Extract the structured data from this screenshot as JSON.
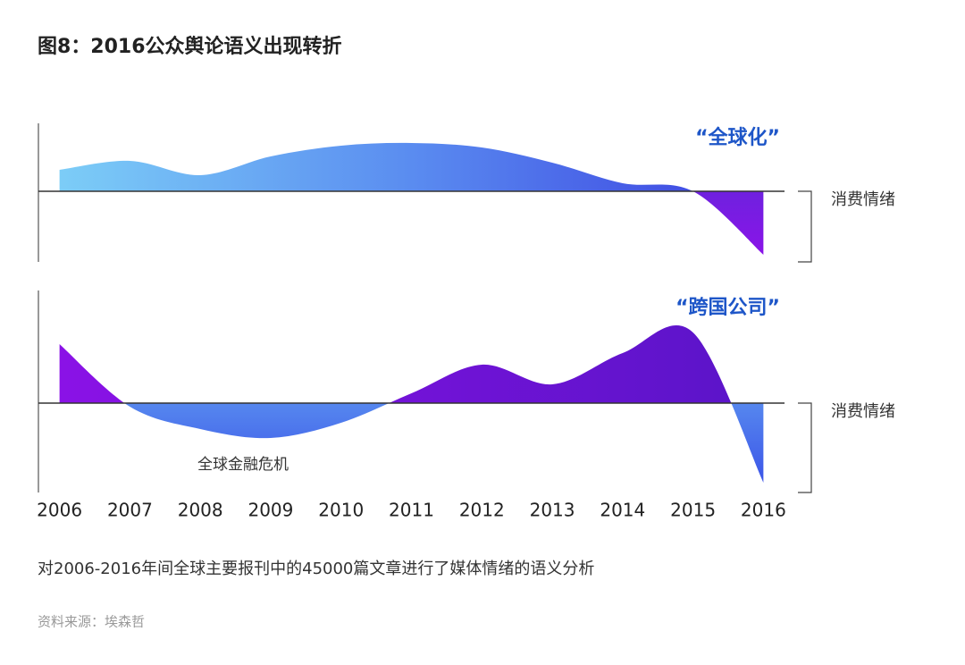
{
  "title": "图8：2016公众舆论语义出现转折",
  "chart_data": [
    {
      "type": "area",
      "label": "“全球化”",
      "axis_label": "消费情绪",
      "x": [
        2006,
        2007,
        2008,
        2009,
        2010,
        2011,
        2012,
        2013,
        2014,
        2015,
        2016
      ],
      "values": [
        24,
        34,
        18,
        39,
        51,
        54,
        49,
        32,
        9,
        0,
        -71
      ],
      "xlim": [
        2005.7,
        2016.3
      ],
      "ylim": [
        -79,
        76
      ]
    },
    {
      "type": "area",
      "label": "“跨国公司”",
      "axis_label": "消费情绪",
      "annotation": "全球金融危机",
      "x": [
        2006,
        2007,
        2008,
        2009,
        2010,
        2011,
        2012,
        2013,
        2014,
        2015,
        2016
      ],
      "values": [
        66,
        -4,
        -29,
        -39,
        -22,
        11,
        43,
        21,
        56,
        79,
        -89
      ],
      "xlim": [
        2005.7,
        2016.3
      ],
      "ylim": [
        -100,
        126
      ]
    }
  ],
  "caption": "对2006-2016年间全球主要报刊中的45000篇文章进行了媒体情绪的语义分析",
  "source": "资料来源：埃森哲"
}
